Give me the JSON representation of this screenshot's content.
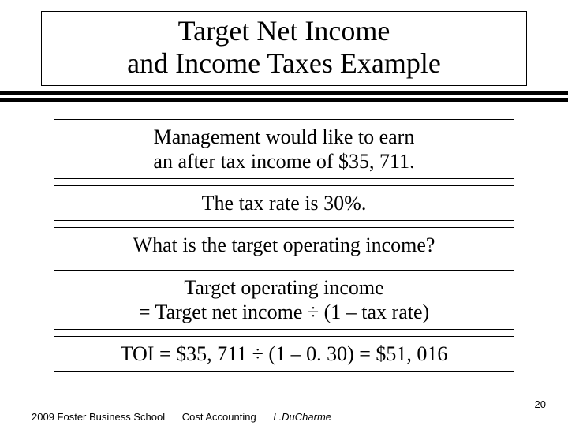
{
  "title": {
    "line1": "Target Net Income",
    "line2": "and Income Taxes Example"
  },
  "blocks": [
    {
      "lines": [
        "Management would like to earn",
        "an after tax income of $35, 711."
      ]
    },
    {
      "lines": [
        "The tax rate is 30%."
      ]
    },
    {
      "lines": [
        "What is the target operating income?"
      ]
    },
    {
      "lines": [
        "Target operating income",
        "= Target net income ÷ (1 – tax rate)"
      ]
    },
    {
      "lines": [
        "TOI = $35, 711 ÷ (1 – 0. 30) = $51, 016"
      ]
    }
  ],
  "footer": {
    "year_school": "2009  Foster Business School",
    "course": "Cost Accounting",
    "author": "L.DuCharme"
  },
  "page_number": "20",
  "colors": {
    "background": "#ffffff",
    "text": "#000000",
    "border": "#000000"
  },
  "typography": {
    "title_fontsize_pt": 28,
    "body_fontsize_pt": 20,
    "footer_fontsize_pt": 10,
    "font_family": "Times New Roman"
  }
}
